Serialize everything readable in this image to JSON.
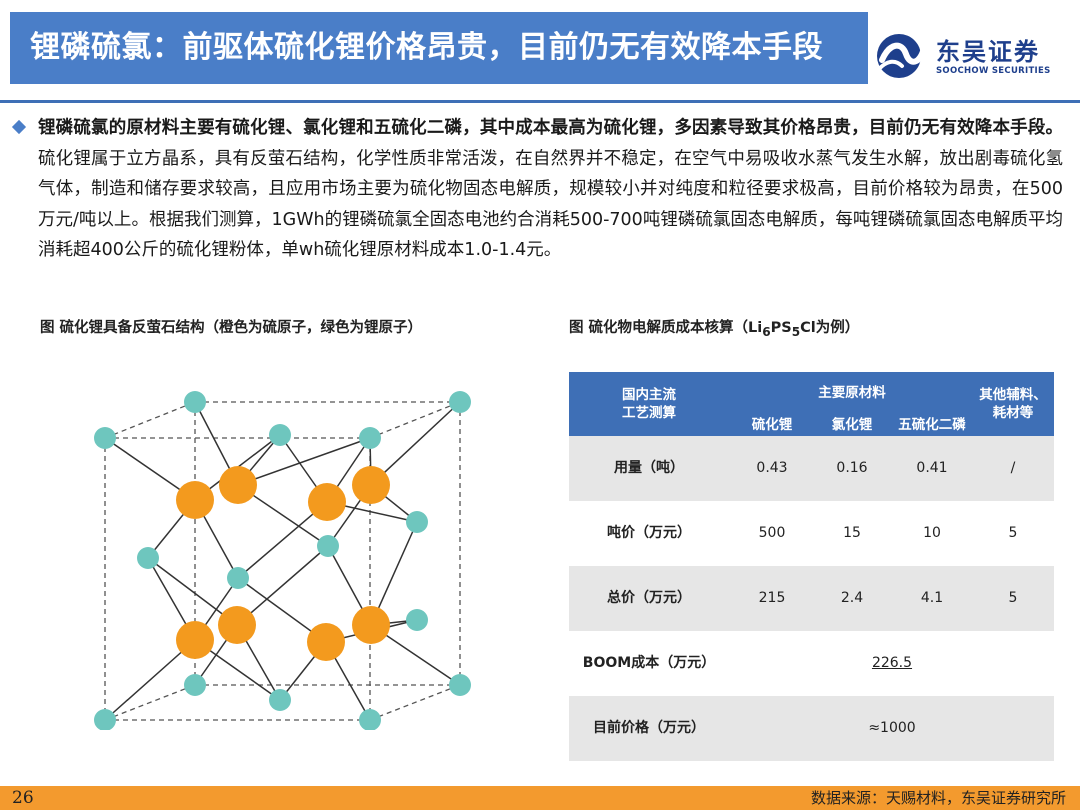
{
  "header": {
    "title": "锂磷硫氯：前驱体硫化锂价格昂贵，目前仍无有效降本手段",
    "logo_cn": "东吴证券",
    "logo_en": "SOOCHOW SECURITIES"
  },
  "body": {
    "bold_text": "锂磷硫氯的原材料主要有硫化锂、氯化锂和五硫化二磷，其中成本最高为硫化锂，多因素导致其价格昂贵，目前仍无有效降本手段。",
    "normal_text": "硫化锂属于立方晶系，具有反萤石结构，化学性质非常活泼，在自然界并不稳定，在空气中易吸收水蒸气发生水解，放出剧毒硫化氢气体，制造和储存要求较高，且应用市场主要为硫化物固态电解质，规模较小并对纯度和粒径要求极高，目前价格较为昂贵，在500万元/吨以上。根据我们测算，1GWh的锂磷硫氯全固态电池约合消耗500-700吨锂磷硫氯固态电解质，每吨锂磷硫氯固态电解质平均消耗超400公斤的硫化锂粉体，单wh硫化锂原材料成本1.0-1.4元。"
  },
  "figure_left": {
    "caption": "图  硫化锂具备反萤石结构（橙色为硫原子，绿色为锂原子）"
  },
  "figure_right": {
    "caption_prefix": "图  硫化物电解质成本核算（Li",
    "sub1": "6",
    "mid1": "PS",
    "sub2": "5",
    "caption_suffix": "Cl为例）"
  },
  "table": {
    "header_main": "国内主流\n工艺测算",
    "header_group": "主要原材料",
    "header_other": "其他辅料、\n耗材等",
    "header_cols": [
      "硫化锂",
      "氯化锂",
      "五硫化二磷"
    ],
    "rows": [
      {
        "label": "用量（吨）",
        "values": [
          "0.43",
          "0.16",
          "0.41",
          "/"
        ]
      },
      {
        "label": "吨价（万元）",
        "values": [
          "500",
          "15",
          "10",
          "5"
        ]
      },
      {
        "label": "总价（万元）",
        "values": [
          "215",
          "2.4",
          "4.1",
          "5"
        ]
      }
    ],
    "boom_label": "BOOM成本（万元）",
    "boom_value": "226.5",
    "price_label": "目前价格（万元）",
    "price_value": "≈1000"
  },
  "footer": {
    "page": "26",
    "source": "数据来源：天赐材料，东吴证券研究所"
  },
  "colors": {
    "title_bg": "#4A7EC8",
    "table_header": "#3E6FB6",
    "footer_bg": "#F39A2E",
    "sulfur_atom": "#F39A1E",
    "lithium_atom": "#6EC6BE"
  }
}
